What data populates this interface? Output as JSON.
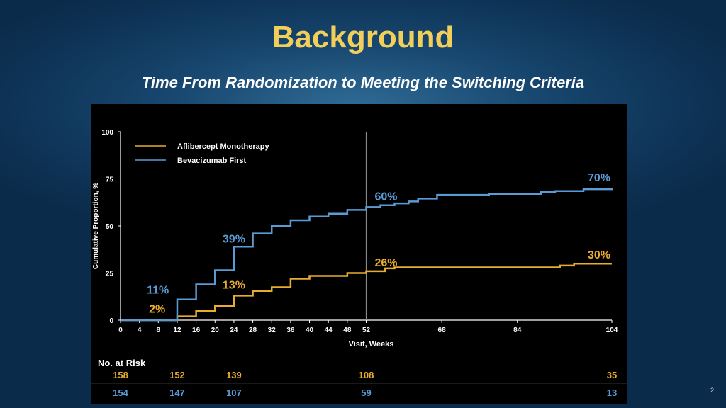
{
  "slide": {
    "title": "Background",
    "subtitle": "Time From Randomization to Meeting the Switching Criteria",
    "page_number": "2"
  },
  "colors": {
    "title": "#f2cf5b",
    "aflibercept": "#e8ad2e",
    "bevacizumab": "#5b9bd5",
    "panel_background": "#000000",
    "slide_background": "#0e3356"
  },
  "chart_data": {
    "type": "line",
    "step": true,
    "xlabel": "Visit, Weeks",
    "ylabel": "Cumulative Proportion, %",
    "xlim": [
      0,
      104
    ],
    "ylim": [
      0,
      100
    ],
    "xticks": [
      0,
      4,
      8,
      12,
      16,
      20,
      24,
      28,
      32,
      36,
      40,
      44,
      48,
      52,
      68,
      84,
      104
    ],
    "yticks": [
      0,
      25,
      50,
      75,
      100
    ],
    "reference_line_x": 52,
    "legend_position": "top-left",
    "series": [
      {
        "name": "Aflibercept Monotherapy",
        "color": "#e8ad2e",
        "points": [
          [
            0,
            0
          ],
          [
            12,
            2
          ],
          [
            16,
            5
          ],
          [
            20,
            7.5
          ],
          [
            24,
            13
          ],
          [
            28,
            15.5
          ],
          [
            32,
            17.5
          ],
          [
            36,
            22
          ],
          [
            40,
            23.5
          ],
          [
            48,
            25
          ],
          [
            52,
            26
          ],
          [
            56,
            27.5
          ],
          [
            58,
            28
          ],
          [
            93,
            29
          ],
          [
            96,
            30
          ],
          [
            104,
            30
          ]
        ]
      },
      {
        "name": "Bevacizumab First",
        "color": "#5b9bd5",
        "points": [
          [
            0,
            0
          ],
          [
            12,
            11
          ],
          [
            16,
            19
          ],
          [
            20,
            26.5
          ],
          [
            24,
            39
          ],
          [
            28,
            46
          ],
          [
            32,
            50
          ],
          [
            36,
            53
          ],
          [
            40,
            55
          ],
          [
            44,
            56.5
          ],
          [
            48,
            58.5
          ],
          [
            52,
            60
          ],
          [
            55,
            61
          ],
          [
            58,
            62
          ],
          [
            61,
            63
          ],
          [
            63,
            64.5
          ],
          [
            67,
            66.5
          ],
          [
            78,
            67
          ],
          [
            89,
            68
          ],
          [
            92,
            68.5
          ],
          [
            98,
            69.5
          ],
          [
            104,
            70
          ]
        ]
      }
    ],
    "annotations": [
      {
        "text": "2%",
        "x": 10,
        "y": 2,
        "series": "Aflibercept Monotherapy"
      },
      {
        "text": "13%",
        "x": 24,
        "y": 13,
        "series": "Aflibercept Monotherapy"
      },
      {
        "text": "26%",
        "x": 52,
        "y": 26,
        "series": "Aflibercept Monotherapy"
      },
      {
        "text": "30%",
        "x": 104,
        "y": 30,
        "series": "Aflibercept Monotherapy"
      },
      {
        "text": "11%",
        "x": 10,
        "y": 11,
        "series": "Bevacizumab First"
      },
      {
        "text": "39%",
        "x": 24,
        "y": 39,
        "series": "Bevacizumab First"
      },
      {
        "text": "60%",
        "x": 52,
        "y": 60,
        "series": "Bevacizumab First"
      },
      {
        "text": "70%",
        "x": 104,
        "y": 70,
        "series": "Bevacizumab First"
      }
    ]
  },
  "risk_table": {
    "title": "No. at Risk",
    "weeks": [
      0,
      12,
      24,
      52,
      104
    ],
    "rows": [
      {
        "series": "Aflibercept Monotherapy",
        "color": "#e8ad2e",
        "values": [
          "158",
          "152",
          "139",
          "108",
          "35"
        ]
      },
      {
        "series": "Bevacizumab First",
        "color": "#5b9bd5",
        "values": [
          "154",
          "147",
          "107",
          "59",
          "13"
        ]
      }
    ]
  }
}
